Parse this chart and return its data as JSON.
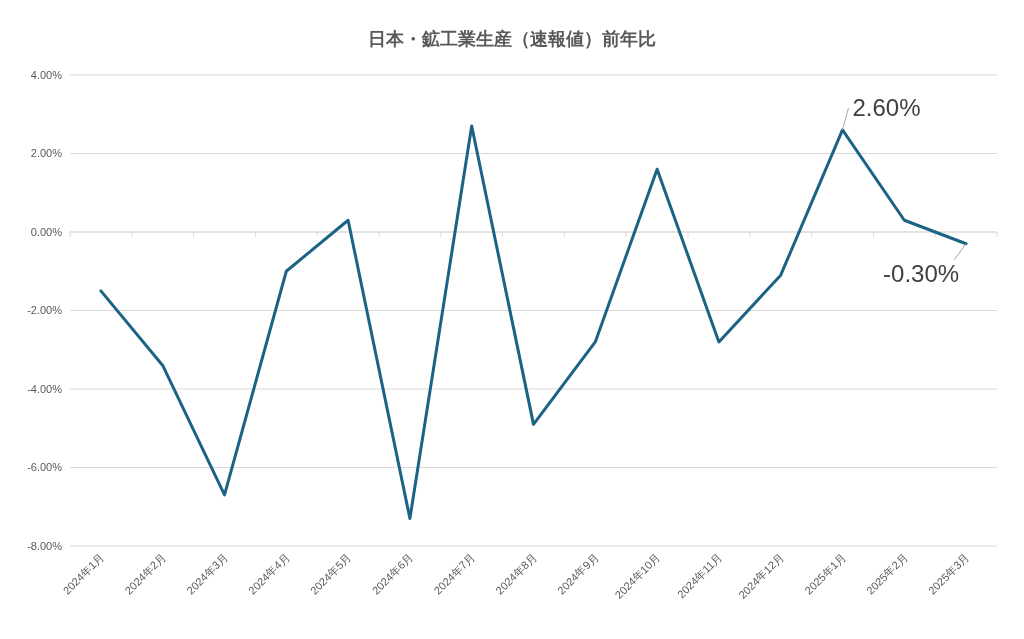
{
  "chart_data": {
    "type": "line",
    "title": "日本・鉱工業生産（速報値）前年比",
    "categories": [
      "2024年1月",
      "2024年2月",
      "2024年3月",
      "2024年4月",
      "2024年5月",
      "2024年6月",
      "2024年7月",
      "2024年8月",
      "2024年9月",
      "2024年10月",
      "2024年11月",
      "2024年12月",
      "2025年1月",
      "2025年2月",
      "2025年3月"
    ],
    "series": [
      {
        "color": "#1b6384",
        "values": [
          -1.5,
          -3.4,
          -6.7,
          -1.0,
          0.3,
          -7.3,
          2.7,
          -4.9,
          -2.8,
          1.6,
          -2.8,
          -1.1,
          2.6,
          0.3,
          -0.3
        ]
      }
    ],
    "ylim": [
      -8,
      4
    ],
    "yticks": [
      {
        "value": -8,
        "label": "-8.00%"
      },
      {
        "value": -6,
        "label": "-6.00%"
      },
      {
        "value": -4,
        "label": "-4.00%"
      },
      {
        "value": -2,
        "label": "-2.00%"
      },
      {
        "value": 0,
        "label": "0.00%"
      },
      {
        "value": 2,
        "label": "2.00%"
      },
      {
        "value": 4,
        "label": "4.00%"
      }
    ],
    "grid": "y",
    "marker": "none",
    "line_style": "solid",
    "annotations": [
      {
        "text": "2.60%",
        "x": "2025年1月",
        "y": 2.6
      },
      {
        "text": "-0.30%",
        "x": "2025年3月",
        "y": -0.3
      }
    ]
  }
}
